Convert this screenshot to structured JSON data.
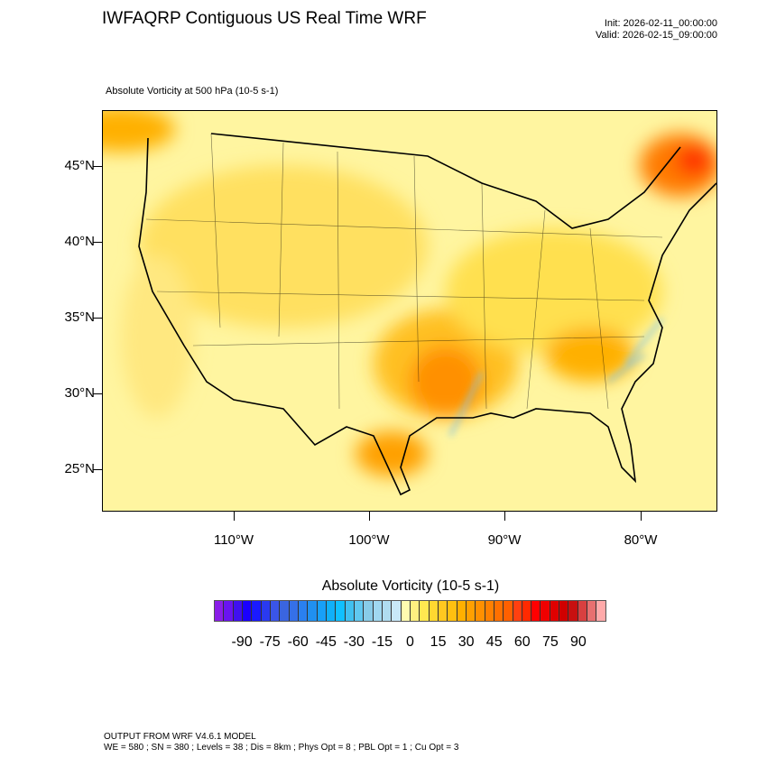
{
  "header": {
    "title": "IWFAQRP Contiguous US Real Time WRF",
    "init": "Init: 2026-02-11_00:00:00",
    "valid": "Valid: 2026-02-15_09:00:00",
    "field_label": "Absolute Vorticity at 500 hPa   (10-5 s-1)"
  },
  "map": {
    "lat_labels": [
      "45°N",
      "40°N",
      "35°N",
      "30°N",
      "25°N"
    ],
    "lon_labels": [
      "110°W",
      "100°W",
      "90°W",
      "80°W"
    ]
  },
  "colorbar": {
    "title": "Absolute Vorticity  (10-5 s-1)",
    "labels": [
      "-90",
      "-75",
      "-60",
      "-45",
      "-30",
      "-15",
      "0",
      "15",
      "30",
      "45",
      "60",
      "75",
      "90"
    ],
    "colors": [
      "#8a1ee8",
      "#6a14f0",
      "#4010f0",
      "#1a00ff",
      "#1a1aff",
      "#2a3af0",
      "#3a55e8",
      "#3a65e0",
      "#3570e8",
      "#2a80f0",
      "#2090f0",
      "#18a0f8",
      "#10b0f8",
      "#10c0ff",
      "#40c0f0",
      "#60c8f0",
      "#88cce8",
      "#a0d8f0",
      "#b0dcf0",
      "#c8e8f8",
      "#fffcb0",
      "#fff080",
      "#ffe850",
      "#ffd830",
      "#ffc820",
      "#ffc010",
      "#ffb000",
      "#ffa000",
      "#ff9000",
      "#ff8000",
      "#ff7000",
      "#ff6000",
      "#ff4010",
      "#ff2a00",
      "#ff0000",
      "#f00000",
      "#e00000",
      "#d00000",
      "#c81010",
      "#d84040",
      "#e87070",
      "#ffaaaa"
    ]
  },
  "footer": {
    "line1": "OUTPUT FROM WRF V4.6.1 MODEL",
    "line2": "WE = 580 ; SN = 380 ; Levels = 38 ; Dis = 8km ; Phys Opt = 8 ; PBL Opt = 1 ; Cu Opt = 3"
  }
}
